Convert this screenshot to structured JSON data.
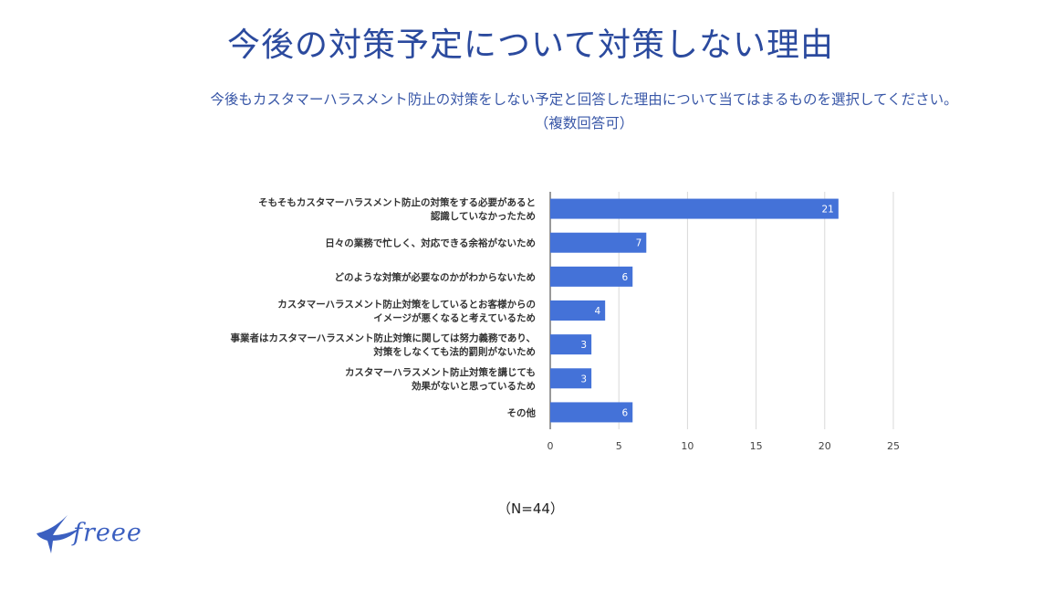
{
  "title": "今後の対策予定について対策しない理由",
  "subtitle_line1": "今後もカスタマーハラスメント防止の対策をしない予定と回答した理由について当てはまるものを選択してください。",
  "subtitle_line2": "（複数回答可）",
  "note": "（N=44）",
  "brand": {
    "name": "freee",
    "color": "#3b5fc0"
  },
  "chart_data": {
    "type": "bar",
    "orientation": "horizontal",
    "categories": [
      [
        "そもそもカスタマーハラスメント防止の対策をする必要があると",
        "認識していなかったため"
      ],
      [
        "日々の業務で忙しく、対応できる余裕がないため"
      ],
      [
        "どのような対策が必要なのかがわからないため"
      ],
      [
        "カスタマーハラスメント防止対策をしているとお客様からの",
        "イメージが悪くなると考えているため"
      ],
      [
        "事業者はカスタマーハラスメント防止対策に関しては努力義務であり、",
        "対策をしなくても法的罰則がないため"
      ],
      [
        "カスタマーハラスメント防止対策を講じても",
        "効果がないと思っているため"
      ],
      [
        "その他"
      ]
    ],
    "values": [
      21,
      7,
      6,
      4,
      3,
      3,
      6
    ],
    "xlim": [
      0,
      25
    ],
    "xticks": [
      0,
      5,
      10,
      15,
      20,
      25
    ],
    "grid": true,
    "bar_color": "#4472d8",
    "value_label_color": "#ffffff"
  }
}
